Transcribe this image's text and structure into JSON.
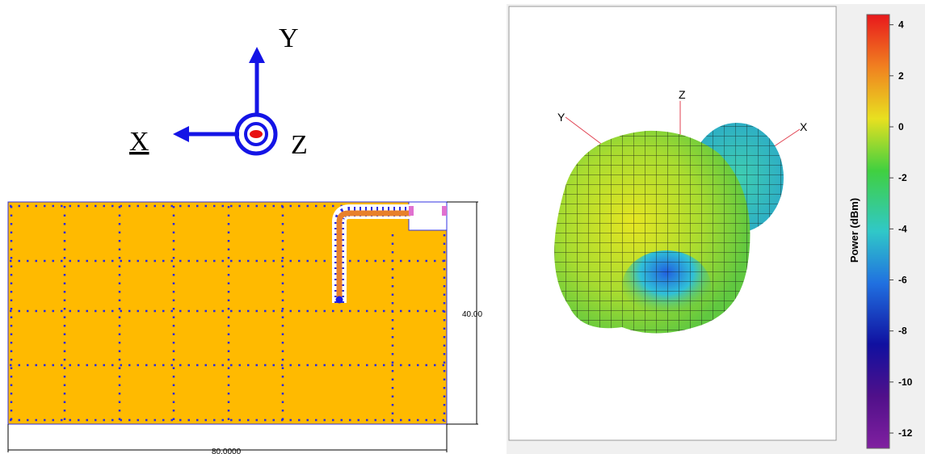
{
  "axes_icon": {
    "x": "X",
    "y": "Y",
    "z": "Z"
  },
  "board": {
    "height_label": "40.00",
    "width_label": "80.0000"
  },
  "pattern": {
    "axis_labels": {
      "y": "Y",
      "z": "Z",
      "x": "X"
    },
    "colorbar": {
      "label": "Power (dBm)",
      "lim": [
        -12.6,
        4.4
      ],
      "ticks": [
        4,
        2,
        0,
        -2,
        -4,
        -6,
        -8,
        -10,
        -12
      ]
    }
  }
}
